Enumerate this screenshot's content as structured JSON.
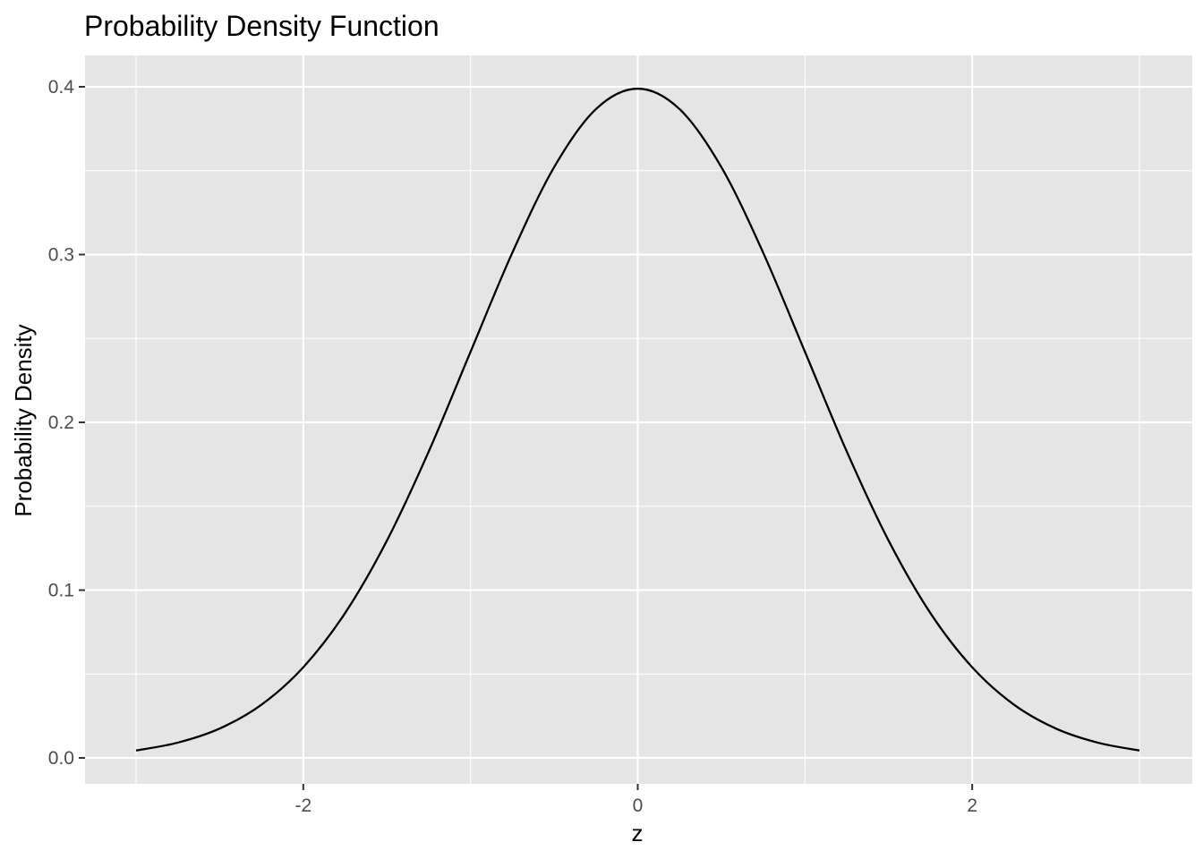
{
  "chart_data": {
    "type": "line",
    "title": "Probability Density Function",
    "xlabel": "z",
    "ylabel": "Probability Density",
    "xlim": [
      -3,
      3
    ],
    "ylim": [
      0,
      0.4
    ],
    "x_ticks": [
      {
        "value": -2,
        "label": "-2"
      },
      {
        "value": 0,
        "label": "0"
      },
      {
        "value": 2,
        "label": "2"
      }
    ],
    "x_minor": [
      -3,
      -1,
      1,
      3
    ],
    "y_ticks": [
      {
        "value": 0.0,
        "label": "0.0"
      },
      {
        "value": 0.1,
        "label": "0.1"
      },
      {
        "value": 0.2,
        "label": "0.2"
      },
      {
        "value": 0.3,
        "label": "0.3"
      },
      {
        "value": 0.4,
        "label": "0.4"
      }
    ],
    "y_minor": [
      0.05,
      0.15,
      0.25,
      0.35
    ],
    "series": [
      {
        "x": [
          -3.0,
          -2.75,
          -2.5,
          -2.25,
          -2.0,
          -1.75,
          -1.5,
          -1.25,
          -1.0,
          -0.75,
          -0.5,
          -0.25,
          0.0,
          0.25,
          0.5,
          0.75,
          1.0,
          1.25,
          1.5,
          1.75,
          2.0,
          2.25,
          2.5,
          2.75,
          3.0
        ],
        "y": [
          0.0044,
          0.0091,
          0.0175,
          0.0317,
          0.054,
          0.0863,
          0.1295,
          0.1826,
          0.242,
          0.3011,
          0.3521,
          0.3867,
          0.3989,
          0.3867,
          0.3521,
          0.3011,
          0.242,
          0.1826,
          0.1295,
          0.0863,
          0.054,
          0.0317,
          0.0175,
          0.0091,
          0.0044
        ]
      }
    ],
    "grid": true,
    "colors": {
      "panel": "#e5e5e5",
      "grid": "#ffffff",
      "line": "#000000",
      "tick_text": "#4d4d4d",
      "tick_mark": "#333333"
    }
  }
}
